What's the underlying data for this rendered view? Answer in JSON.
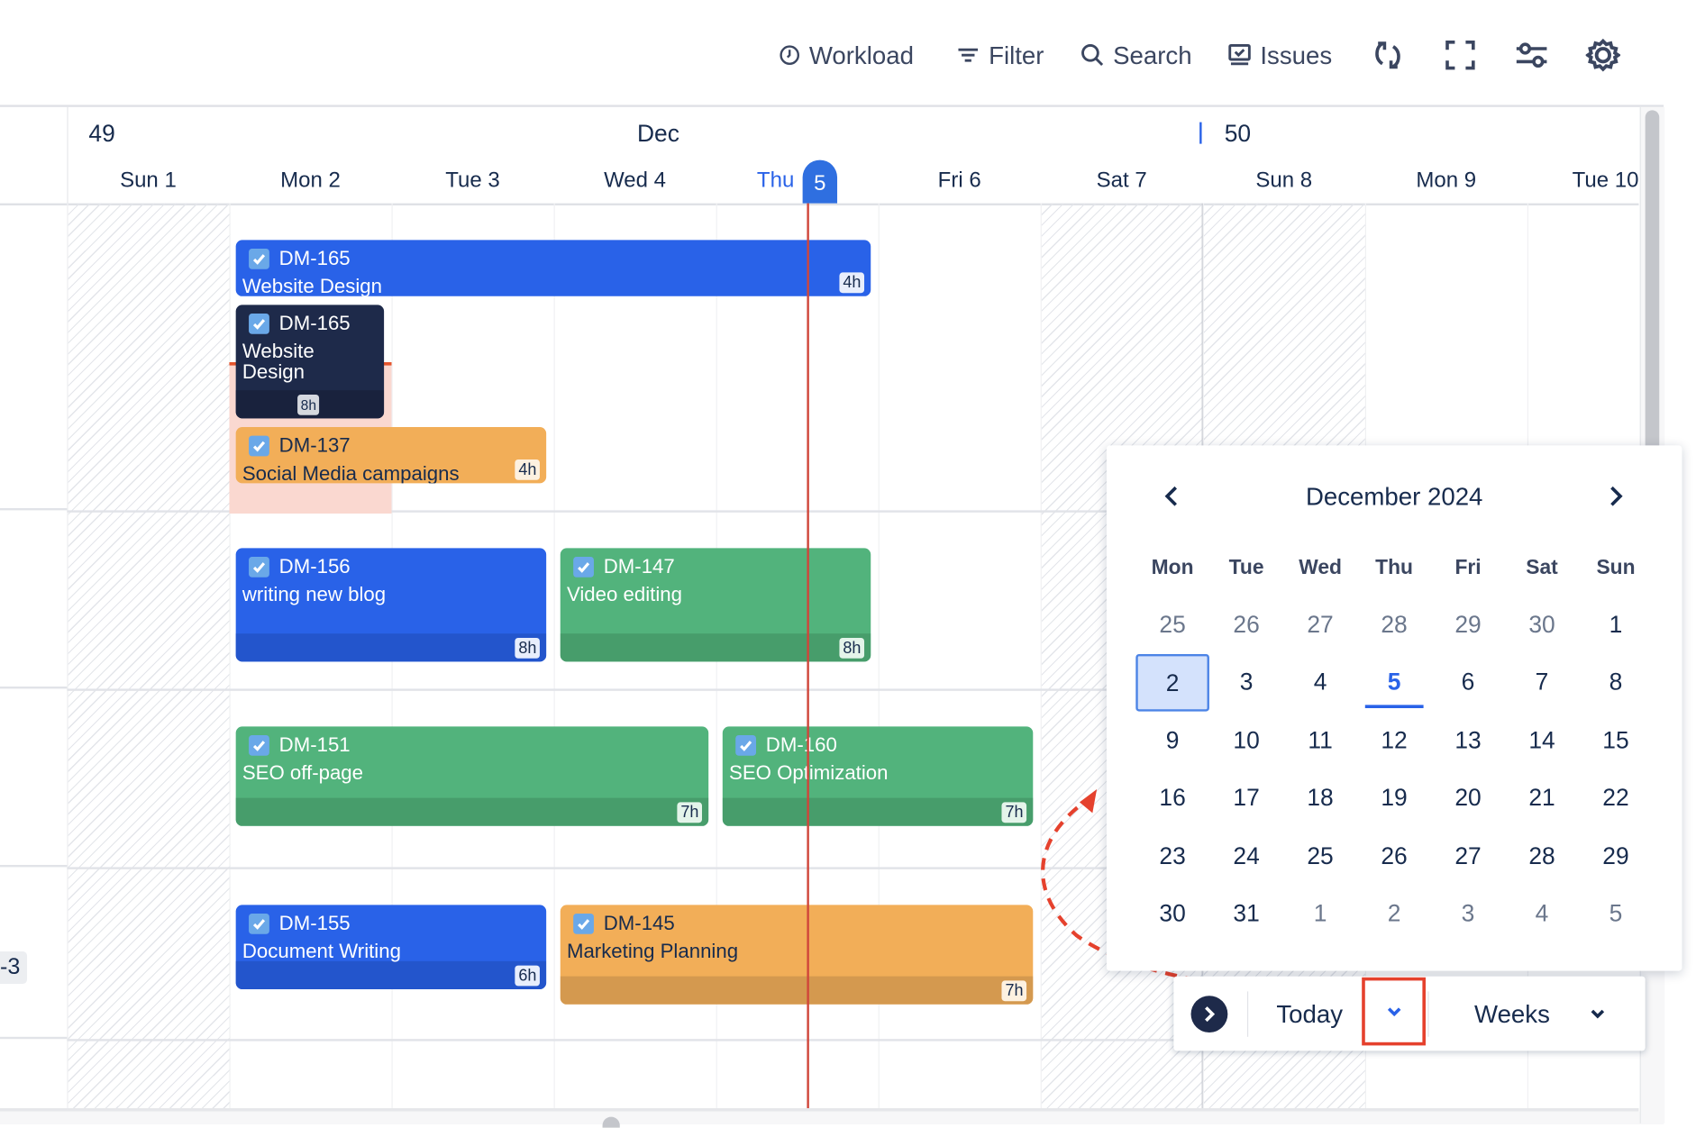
{
  "toolbar": {
    "workload": "Workload",
    "filter": "Filter",
    "search": "Search",
    "issues": "Issues",
    "icons": [
      "clock-icon",
      "filter-icon",
      "search-icon",
      "issues-icon",
      "refresh-icon",
      "fullscreen-icon",
      "sliders-icon",
      "gear-icon"
    ]
  },
  "timeline": {
    "week_start": "49",
    "month": "Dec",
    "week_next": "50",
    "days": [
      "Sun 1",
      "Mon 2",
      "Tue 3",
      "Wed 4",
      "Thu",
      "Fri 6",
      "Sat 7",
      "Sun 8",
      "Mon 9",
      "Tue 10"
    ],
    "today_num": "5",
    "row_badge": "-3"
  },
  "bars": [
    {
      "id": "DM-165",
      "title": "Website Design",
      "hours": "4h",
      "color": "#2962e8"
    },
    {
      "id": "DM-165",
      "title": "Website Design",
      "hours": "8h",
      "color": "#1e2a4a"
    },
    {
      "id": "DM-137",
      "title": "Social Media campaigns",
      "hours": "4h",
      "color": "#f2ae58"
    },
    {
      "id": "DM-156",
      "title": "writing new blog",
      "hours": "8h",
      "color": "#2962e8"
    },
    {
      "id": "DM-147",
      "title": "Video editing",
      "hours": "8h",
      "color": "#52b37c"
    },
    {
      "id": "DM-151",
      "title": "SEO off-page",
      "hours": "7h",
      "color": "#52b37c"
    },
    {
      "id": "DM-160",
      "title": "SEO Optimization",
      "hours": "7h",
      "color": "#52b37c"
    },
    {
      "id": "DM-155",
      "title": "Document Writing",
      "hours": "6h",
      "color": "#2962e8"
    },
    {
      "id": "DM-145",
      "title": "Marketing Planning",
      "hours": "7h",
      "color": "#f2ae58"
    }
  ],
  "datepicker": {
    "title": "December 2024",
    "weekdays": [
      "Mon",
      "Tue",
      "Wed",
      "Thu",
      "Fri",
      "Sat",
      "Sun"
    ],
    "weeks": [
      [
        {
          "d": "25",
          "m": true
        },
        {
          "d": "26",
          "m": true
        },
        {
          "d": "27",
          "m": true
        },
        {
          "d": "28",
          "m": true
        },
        {
          "d": "29",
          "m": true
        },
        {
          "d": "30",
          "m": true
        },
        {
          "d": "1"
        }
      ],
      [
        {
          "d": "2"
        },
        {
          "d": "3"
        },
        {
          "d": "4"
        },
        {
          "d": "5"
        },
        {
          "d": "6"
        },
        {
          "d": "7"
        },
        {
          "d": "8"
        }
      ],
      [
        {
          "d": "9"
        },
        {
          "d": "10"
        },
        {
          "d": "11"
        },
        {
          "d": "12"
        },
        {
          "d": "13"
        },
        {
          "d": "14"
        },
        {
          "d": "15"
        }
      ],
      [
        {
          "d": "16"
        },
        {
          "d": "17"
        },
        {
          "d": "18"
        },
        {
          "d": "19"
        },
        {
          "d": "20"
        },
        {
          "d": "21"
        },
        {
          "d": "22"
        }
      ],
      [
        {
          "d": "23"
        },
        {
          "d": "24"
        },
        {
          "d": "25"
        },
        {
          "d": "26"
        },
        {
          "d": "27"
        },
        {
          "d": "28"
        },
        {
          "d": "29"
        }
      ],
      [
        {
          "d": "30"
        },
        {
          "d": "31"
        },
        {
          "d": "1",
          "m": true
        },
        {
          "d": "2",
          "m": true
        },
        {
          "d": "3",
          "m": true
        },
        {
          "d": "4",
          "m": true
        },
        {
          "d": "5",
          "m": true
        }
      ]
    ],
    "selected": "2",
    "today": "5"
  },
  "controls": {
    "today": "Today",
    "view": "Weeks"
  },
  "colors": {
    "accent": "#2962e8",
    "today_line": "#d0463a",
    "highlight": "#e5412d"
  }
}
